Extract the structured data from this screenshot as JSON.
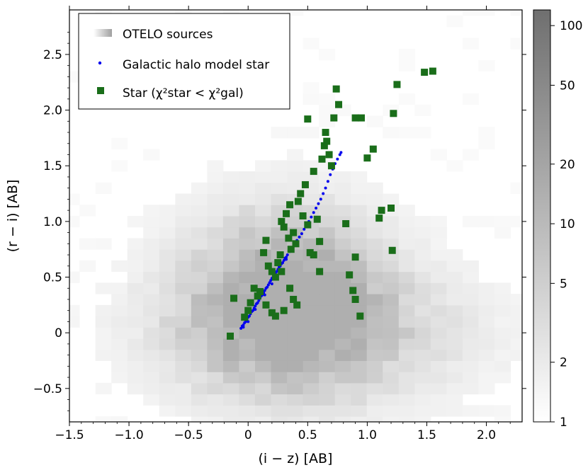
{
  "chart_data": {
    "type": "scatter",
    "xlabel": "(i − z) [AB]",
    "ylabel": "(r − i) [AB]",
    "xlim": [
      -1.5,
      2.3
    ],
    "ylim": [
      -0.8,
      2.9
    ],
    "xticks": [
      -1.5,
      -1.0,
      -0.5,
      0,
      0.5,
      1.0,
      1.5,
      2.0
    ],
    "xtick_labels": [
      "−1.5",
      "−1.0",
      "−0.5",
      "0",
      "0.5",
      "1.0",
      "1.5",
      "2.0"
    ],
    "yticks": [
      -0.5,
      0,
      0.5,
      1.0,
      1.5,
      2.0,
      2.5
    ],
    "ytick_labels": [
      "−0.5",
      "0",
      "0.5",
      "1.0",
      "1.5",
      "2.0",
      "2.5"
    ],
    "legend": {
      "location": "top-left",
      "entries": [
        {
          "label": "OTELO sources",
          "marker": "gray-rect"
        },
        {
          "label": "Galactic halo model star",
          "marker": "blue-dot"
        },
        {
          "label": "Star (χ²star < χ²gal)",
          "marker": "green-square"
        }
      ]
    },
    "colorbar": {
      "scale": "log",
      "range": [
        1,
        120
      ],
      "ticks": [
        1,
        2,
        5,
        10,
        20,
        50,
        100
      ],
      "tick_labels": [
        "1",
        "2",
        "5",
        "10",
        "20",
        "50",
        "100"
      ]
    },
    "heatmap_bins": {
      "x_bin_width": 0.133,
      "y_bin_width": 0.1,
      "x0": -1.5,
      "y0": -0.8,
      "cells": [
        [
          0,
          1,
          0,
          0,
          0,
          0,
          0,
          0,
          0,
          0,
          0,
          0,
          0,
          0,
          0,
          0,
          0,
          0,
          0,
          0,
          0,
          0,
          0,
          0,
          0,
          0,
          0,
          0,
          0,
          0,
          0,
          0,
          0,
          0,
          0,
          0,
          0
        ],
        [
          0,
          1,
          1,
          1,
          1,
          1,
          2,
          2,
          1,
          1,
          1,
          1,
          1,
          0,
          0,
          0,
          0,
          0,
          0,
          0,
          0,
          0,
          0,
          0,
          0,
          0,
          0,
          0,
          0,
          0,
          0,
          0,
          0,
          0,
          0,
          0,
          0
        ],
        [
          0,
          1,
          1,
          2,
          2,
          2,
          3,
          3,
          2,
          2,
          2,
          1,
          1,
          1,
          0,
          0,
          0,
          0,
          0,
          0,
          0,
          0,
          0,
          0,
          0,
          0,
          0,
          0,
          0,
          0,
          0,
          0,
          0,
          0,
          0,
          0,
          0
        ],
        [
          0,
          1,
          2,
          3,
          3,
          4,
          5,
          5,
          4,
          3,
          3,
          2,
          1,
          1,
          1,
          0,
          0,
          0,
          0,
          0,
          0,
          0,
          0,
          0,
          0,
          0,
          0,
          0,
          0,
          0,
          0,
          0,
          0,
          0,
          0,
          0,
          0
        ]
      ]
    },
    "series": [
      {
        "name": "Galactic halo model star",
        "color": "#0000ee",
        "points": [
          [
            -0.06,
            0.04
          ],
          [
            -0.05,
            0.06
          ],
          [
            -0.04,
            0.07
          ],
          [
            -0.03,
            0.09
          ],
          [
            -0.02,
            0.1
          ],
          [
            -0.01,
            0.12
          ],
          [
            0.0,
            0.14
          ],
          [
            0.01,
            0.15
          ],
          [
            0.02,
            0.17
          ],
          [
            0.03,
            0.19
          ],
          [
            0.04,
            0.2
          ],
          [
            0.05,
            0.22
          ],
          [
            0.06,
            0.24
          ],
          [
            0.07,
            0.26
          ],
          [
            0.08,
            0.27
          ],
          [
            0.09,
            0.29
          ],
          [
            0.1,
            0.31
          ],
          [
            0.11,
            0.33
          ],
          [
            0.12,
            0.34
          ],
          [
            0.13,
            0.36
          ],
          [
            0.14,
            0.38
          ],
          [
            0.15,
            0.4
          ],
          [
            0.16,
            0.41
          ],
          [
            0.17,
            0.43
          ],
          [
            0.18,
            0.45
          ],
          [
            0.19,
            0.47
          ],
          [
            0.2,
            0.49
          ],
          [
            0.21,
            0.5
          ],
          [
            0.22,
            0.52
          ],
          [
            0.23,
            0.54
          ],
          [
            0.24,
            0.55
          ],
          [
            0.25,
            0.57
          ],
          [
            0.26,
            0.59
          ],
          [
            0.27,
            0.6
          ],
          [
            0.28,
            0.62
          ],
          [
            0.29,
            0.63
          ],
          [
            0.3,
            0.65
          ],
          [
            0.31,
            0.67
          ],
          [
            0.32,
            0.68
          ],
          [
            0.33,
            0.7
          ],
          [
            0.35,
            0.73
          ],
          [
            0.37,
            0.76
          ],
          [
            0.39,
            0.79
          ],
          [
            0.41,
            0.83
          ],
          [
            0.43,
            0.86
          ],
          [
            0.45,
            0.89
          ],
          [
            0.47,
            0.93
          ],
          [
            0.49,
            0.97
          ],
          [
            0.51,
            1.0
          ],
          [
            0.53,
            1.04
          ],
          [
            0.55,
            1.08
          ],
          [
            0.57,
            1.12
          ],
          [
            0.59,
            1.16
          ],
          [
            0.61,
            1.2
          ],
          [
            0.63,
            1.25
          ],
          [
            0.65,
            1.3
          ],
          [
            0.67,
            1.36
          ],
          [
            0.69,
            1.42
          ],
          [
            0.71,
            1.47
          ],
          [
            0.73,
            1.52
          ],
          [
            0.75,
            1.56
          ],
          [
            0.77,
            1.6
          ],
          [
            0.78,
            1.62
          ],
          [
            -0.04,
            0.05
          ],
          [
            0.0,
            0.1
          ],
          [
            0.06,
            0.21
          ],
          [
            0.14,
            0.34
          ],
          [
            0.2,
            0.44
          ],
          [
            0.26,
            0.55
          ],
          [
            0.32,
            0.66
          ]
        ]
      },
      {
        "name": "Star (χ²star < χ²gal)",
        "color": "#1a6e1a",
        "points": [
          [
            -0.15,
            -0.03
          ],
          [
            -0.12,
            0.31
          ],
          [
            -0.03,
            0.14
          ],
          [
            0.0,
            0.2
          ],
          [
            0.02,
            0.27
          ],
          [
            0.05,
            0.4
          ],
          [
            0.08,
            0.33
          ],
          [
            0.1,
            0.37
          ],
          [
            0.13,
            0.72
          ],
          [
            0.15,
            0.83
          ],
          [
            0.17,
            0.6
          ],
          [
            0.2,
            0.55
          ],
          [
            0.23,
            0.5
          ],
          [
            0.25,
            0.63
          ],
          [
            0.27,
            0.7
          ],
          [
            0.28,
            1.0
          ],
          [
            0.3,
            0.95
          ],
          [
            0.32,
            1.07
          ],
          [
            0.34,
            0.85
          ],
          [
            0.35,
            1.15
          ],
          [
            0.36,
            0.75
          ],
          [
            0.38,
            0.9
          ],
          [
            0.4,
            0.8
          ],
          [
            0.42,
            1.18
          ],
          [
            0.44,
            1.25
          ],
          [
            0.46,
            1.05
          ],
          [
            0.48,
            1.33
          ],
          [
            0.5,
            0.97
          ],
          [
            0.52,
            0.72
          ],
          [
            0.55,
            1.45
          ],
          [
            0.58,
            1.02
          ],
          [
            0.6,
            0.82
          ],
          [
            0.62,
            1.56
          ],
          [
            0.64,
            1.68
          ],
          [
            0.65,
            1.8
          ],
          [
            0.66,
            1.72
          ],
          [
            0.68,
            1.6
          ],
          [
            0.7,
            1.5
          ],
          [
            0.72,
            1.93
          ],
          [
            0.74,
            2.19
          ],
          [
            0.76,
            2.05
          ],
          [
            0.5,
            1.92
          ],
          [
            0.9,
            1.93
          ],
          [
            0.95,
            1.93
          ],
          [
            1.0,
            1.57
          ],
          [
            1.05,
            1.65
          ],
          [
            1.1,
            1.03
          ],
          [
            1.12,
            1.1
          ],
          [
            1.2,
            1.12
          ],
          [
            1.22,
            1.97
          ],
          [
            1.25,
            2.23
          ],
          [
            1.48,
            2.34
          ],
          [
            1.55,
            2.35
          ],
          [
            0.82,
            0.98
          ],
          [
            0.9,
            0.68
          ],
          [
            0.85,
            0.52
          ],
          [
            0.88,
            0.38
          ],
          [
            0.94,
            0.15
          ],
          [
            0.9,
            0.3
          ],
          [
            1.21,
            0.74
          ],
          [
            0.35,
            0.4
          ],
          [
            0.38,
            0.3
          ],
          [
            0.41,
            0.25
          ],
          [
            0.28,
            0.55
          ],
          [
            0.55,
            0.7
          ],
          [
            0.6,
            0.55
          ],
          [
            0.2,
            0.18
          ],
          [
            0.23,
            0.15
          ],
          [
            0.15,
            0.25
          ],
          [
            0.3,
            0.2
          ]
        ]
      }
    ]
  }
}
